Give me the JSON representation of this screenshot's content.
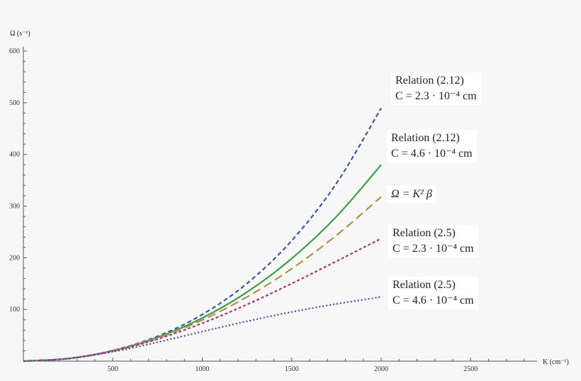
{
  "chart_data": {
    "type": "line",
    "title": "",
    "xlabel": "K (cm⁻¹)",
    "ylabel": "Ω (s⁻¹)",
    "xlim": [
      0,
      2900
    ],
    "ylim": [
      0,
      620
    ],
    "x_ticks": [
      500,
      1000,
      1500,
      2000,
      2500
    ],
    "y_ticks": [
      100,
      200,
      300,
      400,
      500,
      600
    ],
    "grid": false,
    "x": [
      0,
      250,
      500,
      750,
      1000,
      1250,
      1500,
      1750,
      2000
    ],
    "series": [
      {
        "name": "Relation (2.12) C = 2.3 · 10⁻⁴ cm",
        "line1": "Relation (2.12)",
        "line2": "C = 2.3 · 10⁻⁴ cm",
        "color": "#3b57a8",
        "dash": "6,4",
        "values": [
          0,
          5.0,
          20.6,
          48.1,
          90.2,
          150.4,
          233.3,
          344.1,
          489.7
        ]
      },
      {
        "name": "Relation (2.12) C = 4.6 · 10⁻⁴ cm",
        "line1": "Relation (2.12)",
        "line2": "C = 4.6 · 10⁻⁴ cm",
        "color": "#3f9e4c",
        "dash": "",
        "values": [
          0,
          5.0,
          20.1,
          45.9,
          83.4,
          133.6,
          198.6,
          279.8,
          380
        ]
      },
      {
        "name": "Ω = K² β",
        "line1": "Ω = K² β",
        "line2": "",
        "color": "#b0924a",
        "dash": "12,6",
        "values": [
          0,
          4.97,
          19.9,
          44.7,
          79.5,
          124.2,
          178.9,
          243.5,
          318
        ]
      },
      {
        "name": "Relation (2.5) C = 2.3 · 10⁻⁴ cm",
        "line1": "Relation (2.5)",
        "line2": "C = 2.3 · 10⁻⁴ cm",
        "color": "#a83a6e",
        "dash": "4,3",
        "values": [
          0,
          4.94,
          19.5,
          42.7,
          73.3,
          109.6,
          150.2,
          193.3,
          237.3
        ]
      },
      {
        "name": "Relation (2.5) C = 4.6 · 10⁻⁴ cm",
        "line1": "Relation (2.5)",
        "line2": "C = 4.6 · 10⁻⁴ cm",
        "color": "#4a48b0",
        "dash": "2,3",
        "values": [
          0,
          4.85,
          18.1,
          36.6,
          57.2,
          77.1,
          95.2,
          110.8,
          124
        ]
      }
    ]
  }
}
